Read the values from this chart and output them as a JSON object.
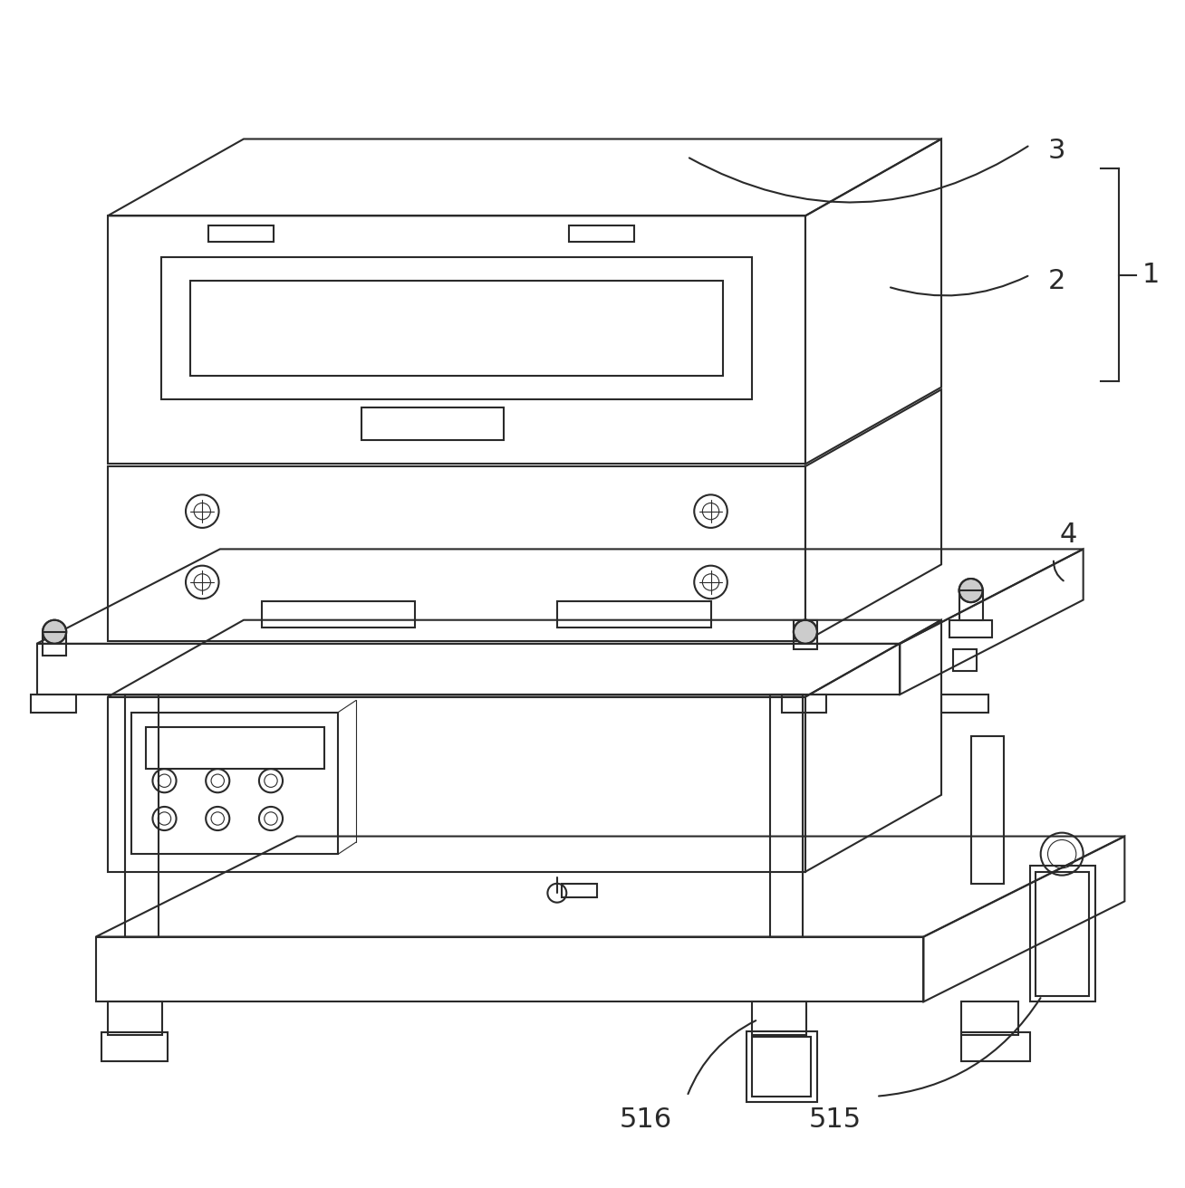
{
  "background_color": "#ffffff",
  "line_color": "#2a2a2a",
  "lw": 1.5,
  "thin_lw": 0.8,
  "figure_width": 13.08,
  "figure_height": 13.12,
  "dpi": 100
}
